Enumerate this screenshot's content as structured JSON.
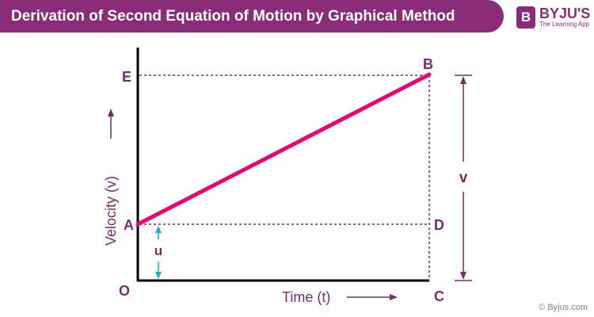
{
  "header": {
    "title": "Derivation of Second Equation of Motion by Graphical Method"
  },
  "brand": {
    "mark": "B",
    "name": "BYJU'S",
    "tagline": "The Learning App"
  },
  "diagram": {
    "points": {
      "origin": "O",
      "a": "A",
      "b": "B",
      "c": "C",
      "d": "D",
      "e": "E"
    },
    "x_axis_label": "Time (t)",
    "y_axis_label": "Velocity (v)",
    "initial_velocity_label": "u",
    "final_velocity_label": "v",
    "colors": {
      "line": "#e5096f",
      "guide": "#7a2a6e",
      "u_arrow": "#1aa8e0",
      "axis": "#000000"
    }
  },
  "footer": {
    "copyright": "© Byjus.com"
  }
}
